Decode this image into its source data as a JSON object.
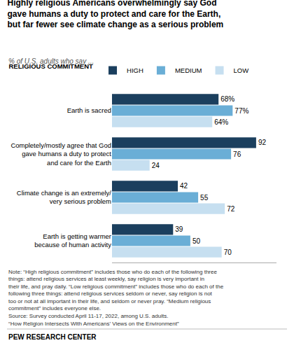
{
  "chart_data": {
    "type": "bar",
    "orientation": "horizontal",
    "title": "Highly religious Americans overwhelmingly say God\ngave humans a duty to protect and care for the Earth,\nbut far fewer see climate change as a serious problem",
    "subtitle": "% of U.S. adults who say ...",
    "legend_title": "RELIGIOUS COMMITMENT",
    "legend": "top",
    "categories": [
      "Earth is sacred",
      "Completely/mostly agree that God\ngave humans a duty to protect\nand care for the Earth",
      "Climate change is an extremely/\nvery serious problem",
      "Earth is getting warmer\nbecause of human activity"
    ],
    "series": [
      {
        "name": "HIGH",
        "color": "#1b3f5e",
        "values": [
          68,
          92,
          42,
          39
        ],
        "value_labels": [
          "68%",
          "92",
          "42",
          "39"
        ]
      },
      {
        "name": "MEDIUM",
        "color": "#6aaed6",
        "values": [
          77,
          76,
          55,
          50
        ],
        "value_labels": [
          "77%",
          "76",
          "55",
          "50"
        ]
      },
      {
        "name": "LOW",
        "color": "#c6dff0",
        "values": [
          64,
          24,
          72,
          70
        ],
        "value_labels": [
          "64%",
          "24",
          "72",
          "70"
        ]
      }
    ],
    "data_labels": true,
    "xlim": [
      0,
      105
    ],
    "xticks": [],
    "tick_labels": "y",
    "grid": false,
    "note": "Note: “High religious commitment” includes those who do each of the following three things: attend religious services at least weekly, say religion is very important in their life, and pray daily. “Low religious commitment” includes those who do each of the following three things: attend religious services seldom or never, say religion is not too or not at all important in their life, and seldom or never pray. “Medium religious commitment” includes everyone else.",
    "source": [
      "Source: Survey conducted April 11-17, 2022, among U.S. adults.",
      "“How Religion Intersects With Americans’ Views on the Environment”"
    ],
    "footer": "PEW RESEARCH CENTER"
  }
}
